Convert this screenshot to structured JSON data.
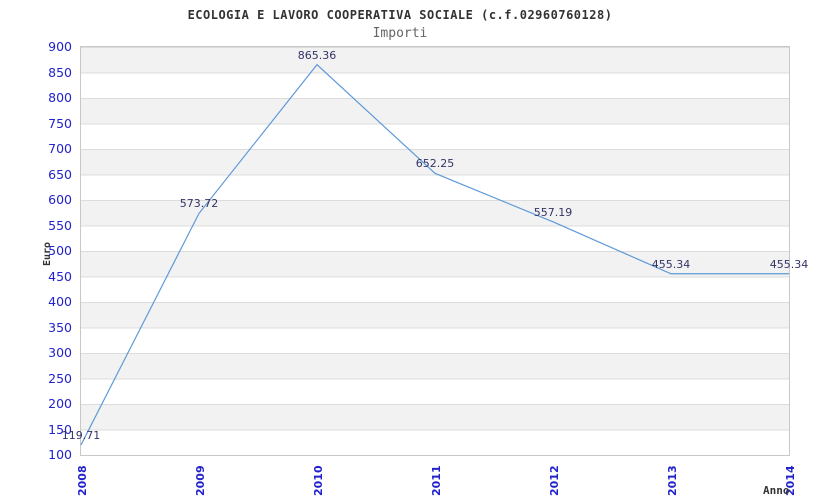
{
  "chart_data": {
    "type": "line",
    "title": "ECOLOGIA E LAVORO COOPERATIVA SOCIALE (c.f.02960760128)",
    "subtitle": "Importi",
    "xlabel": "Anno",
    "ylabel": "Euro",
    "categories": [
      "2008",
      "2009",
      "2010",
      "2011",
      "2012",
      "2013",
      "2014"
    ],
    "series": [
      {
        "name": "Importi",
        "values": [
          119.71,
          573.72,
          865.36,
          652.25,
          557.19,
          455.34,
          455.34
        ],
        "point_labels": [
          "119.71",
          "573.72",
          "865.36",
          "652.25",
          "557.19",
          "455.34",
          "455.34"
        ]
      }
    ],
    "ylim": [
      100,
      900
    ],
    "yticks": [
      100,
      150,
      200,
      250,
      300,
      350,
      400,
      450,
      500,
      550,
      600,
      650,
      700,
      750,
      800,
      850,
      900
    ],
    "grid": true,
    "legend": "none",
    "band_fill": "alternating horizontal bands, gray topmost",
    "colors": {
      "line": "#5e9ad9",
      "tick_labels": "#2222cc",
      "point_labels": "#333366",
      "band": "#f2f2f2",
      "gridline": "#dcdcdc",
      "plot_border": "#c8c8c8",
      "title": "#333333",
      "subtitle": "#666666",
      "axis_titles": "#333333",
      "background": "#ffffff"
    }
  }
}
